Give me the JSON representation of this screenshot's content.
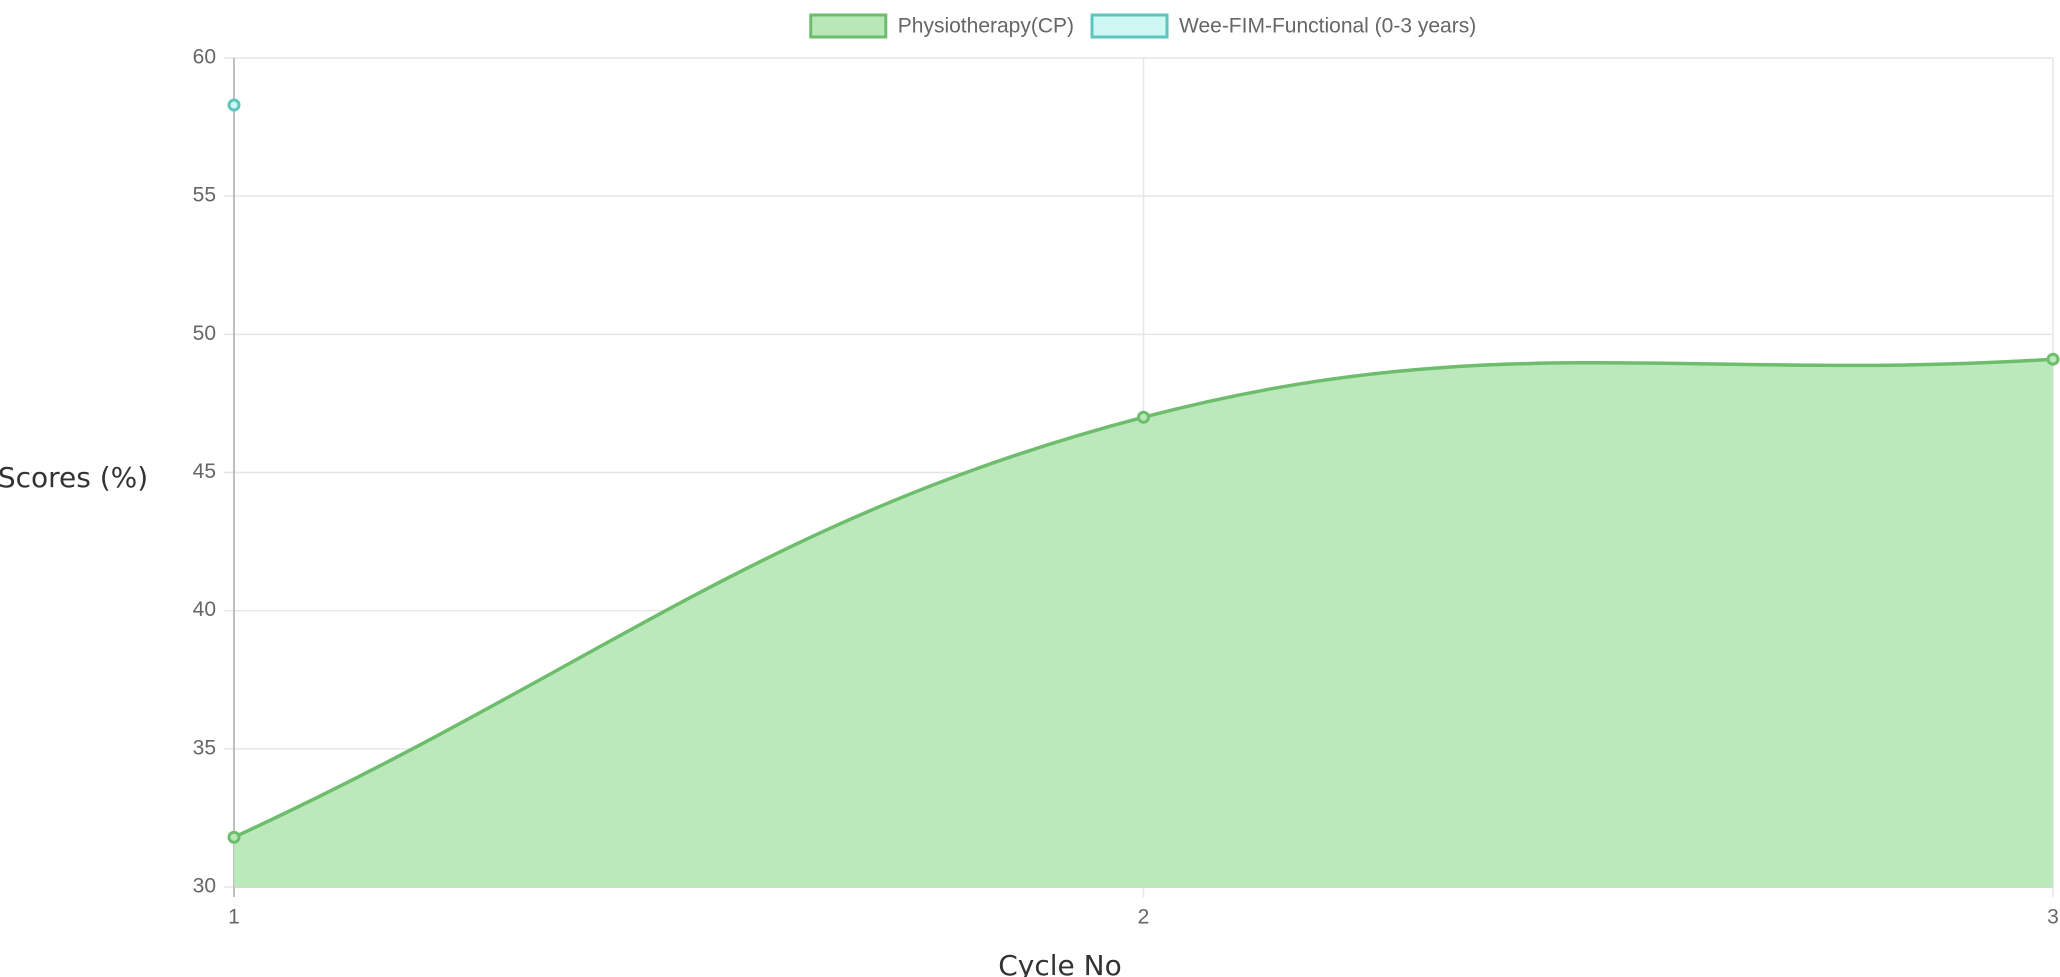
{
  "chart_data": {
    "type": "line",
    "categories": [
      "1",
      "2",
      "3"
    ],
    "series": [
      {
        "name": "Physiotherapy(CP)",
        "color": "#6dbd6d",
        "fill_color": "#b8e8b8",
        "values": [
          31.8,
          47,
          49.1
        ]
      },
      {
        "name": "Wee-FIM-Functional (0-3 years)",
        "color": "#5cc6be",
        "fill_color": "#cff7f3",
        "values": [
          58.3,
          null,
          null
        ]
      }
    ],
    "x_label": "Cycle No",
    "y_label": "Scores (%)",
    "ylim": [
      30,
      60
    ],
    "yticks": [
      30,
      35,
      40,
      45,
      50,
      55,
      60
    ],
    "grid": true,
    "legend": "top",
    "fill": true
  }
}
